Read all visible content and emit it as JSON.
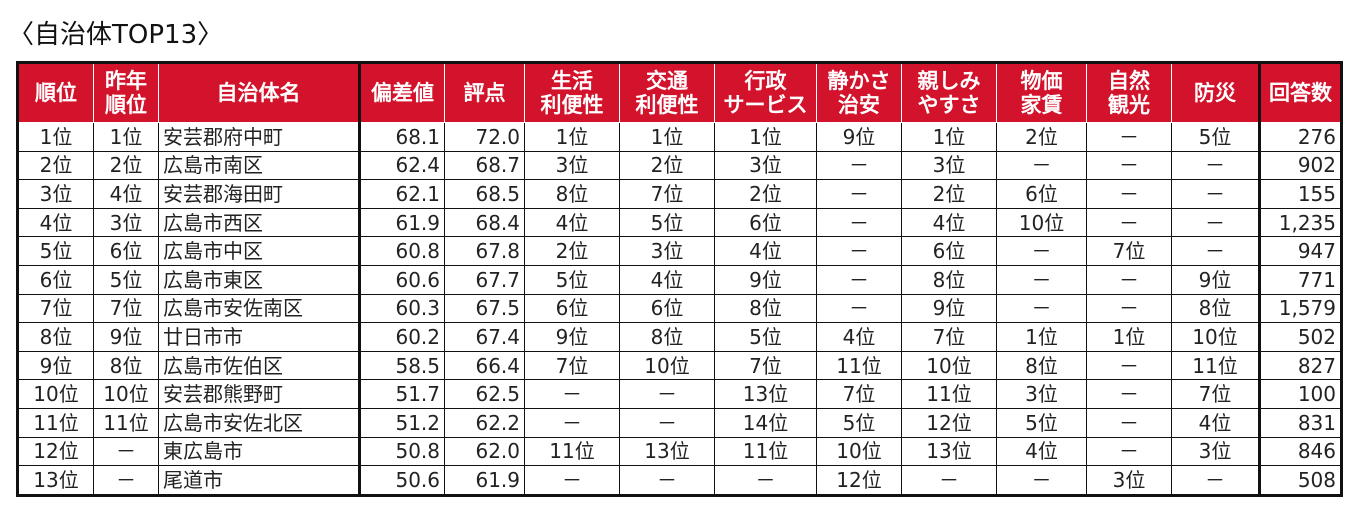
{
  "title": "〈自治体TOP13〉",
  "colors": {
    "header_bg": "#d3122c",
    "header_text": "#ffffff"
  },
  "headers": [
    "順位",
    "昨年\n順位",
    "自治体名",
    "偏差値",
    "評点",
    "生活\n利便性",
    "交通\n利便性",
    "行政\nサービス",
    "静かさ\n治安",
    "親しみ\nやすさ",
    "物価\n家賃",
    "自然\n観光",
    "防災",
    "回答数"
  ],
  "rows": [
    [
      "1位",
      "1位",
      "安芸郡府中町",
      "68.1",
      "72.0",
      "1位",
      "1位",
      "1位",
      "9位",
      "1位",
      "2位",
      "－",
      "5位",
      "276"
    ],
    [
      "2位",
      "2位",
      "広島市南区",
      "62.4",
      "68.7",
      "3位",
      "2位",
      "3位",
      "－",
      "3位",
      "－",
      "－",
      "－",
      "902"
    ],
    [
      "3位",
      "4位",
      "安芸郡海田町",
      "62.1",
      "68.5",
      "8位",
      "7位",
      "2位",
      "－",
      "2位",
      "6位",
      "－",
      "－",
      "155"
    ],
    [
      "4位",
      "3位",
      "広島市西区",
      "61.9",
      "68.4",
      "4位",
      "5位",
      "6位",
      "－",
      "4位",
      "10位",
      "－",
      "－",
      "1,235"
    ],
    [
      "5位",
      "6位",
      "広島市中区",
      "60.8",
      "67.8",
      "2位",
      "3位",
      "4位",
      "－",
      "6位",
      "－",
      "7位",
      "－",
      "947"
    ],
    [
      "6位",
      "5位",
      "広島市東区",
      "60.6",
      "67.7",
      "5位",
      "4位",
      "9位",
      "－",
      "8位",
      "－",
      "－",
      "9位",
      "771"
    ],
    [
      "7位",
      "7位",
      "広島市安佐南区",
      "60.3",
      "67.5",
      "6位",
      "6位",
      "8位",
      "－",
      "9位",
      "－",
      "－",
      "8位",
      "1,579"
    ],
    [
      "8位",
      "9位",
      "廿日市市",
      "60.2",
      "67.4",
      "9位",
      "8位",
      "5位",
      "4位",
      "7位",
      "1位",
      "1位",
      "10位",
      "502"
    ],
    [
      "9位",
      "8位",
      "広島市佐伯区",
      "58.5",
      "66.4",
      "7位",
      "10位",
      "7位",
      "11位",
      "10位",
      "8位",
      "－",
      "11位",
      "827"
    ],
    [
      "10位",
      "10位",
      "安芸郡熊野町",
      "51.7",
      "62.5",
      "－",
      "－",
      "13位",
      "7位",
      "11位",
      "3位",
      "－",
      "7位",
      "100"
    ],
    [
      "11位",
      "11位",
      "広島市安佐北区",
      "51.2",
      "62.2",
      "－",
      "－",
      "14位",
      "5位",
      "12位",
      "5位",
      "－",
      "4位",
      "831"
    ],
    [
      "12位",
      "－",
      "東広島市",
      "50.8",
      "62.0",
      "11位",
      "13位",
      "11位",
      "10位",
      "13位",
      "4位",
      "－",
      "3位",
      "846"
    ],
    [
      "13位",
      "－",
      "尾道市",
      "50.6",
      "61.9",
      "－",
      "－",
      "－",
      "12位",
      "－",
      "－",
      "3位",
      "－",
      "508"
    ]
  ]
}
